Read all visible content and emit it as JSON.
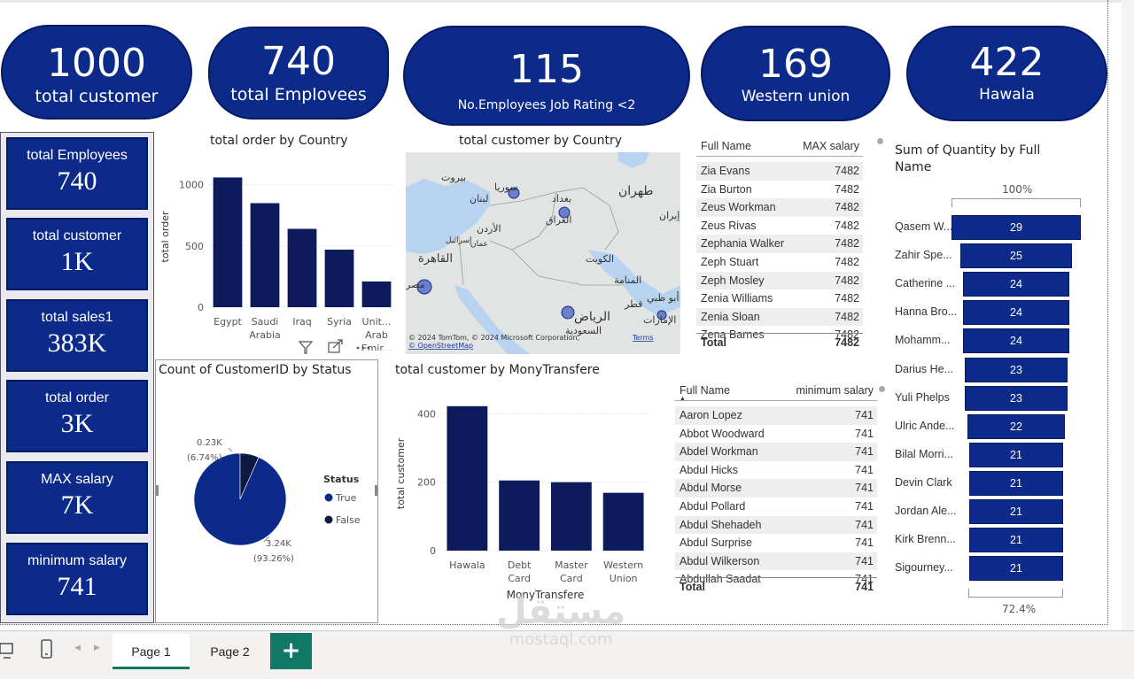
{
  "kpis": [
    {
      "value": "1000",
      "label": "total customer"
    },
    {
      "value": "740",
      "label": "total Emplovees"
    },
    {
      "value": "115",
      "label": "No.Employees Job Rating <2"
    },
    {
      "value": "169",
      "label": "Western union"
    },
    {
      "value": "422",
      "label": "Hawala"
    }
  ],
  "cards": [
    {
      "label": "total Employees",
      "value": "740"
    },
    {
      "label": "total customer",
      "value": "1K"
    },
    {
      "label": "total sales1",
      "value": "383K"
    },
    {
      "label": "total order",
      "value": "3K"
    },
    {
      "label": "MAX salary",
      "value": "7K"
    },
    {
      "label": "minimum salary",
      "value": "741"
    }
  ],
  "map": {
    "title": "total customer by Country",
    "credit": "© 2024 TomTom, © 2024 Microsoft Corporation,",
    "credit2": "© OpenStreetMap",
    "terms": "Terms",
    "labels": [
      {
        "text": "سوريا"
      },
      {
        "text": "بيروت"
      },
      {
        "text": "لبنان"
      },
      {
        "text": "بغداد"
      },
      {
        "text": "العراق"
      },
      {
        "text": "الأردن"
      },
      {
        "text": "طهران"
      },
      {
        "text": "إيران"
      },
      {
        "text": "القاهرة"
      },
      {
        "text": "الكويت"
      },
      {
        "text": "المنامة"
      },
      {
        "text": "مصر"
      },
      {
        "text": "الرياض"
      },
      {
        "text": "السعودية"
      },
      {
        "text": "قطر"
      },
      {
        "text": "أبو ظبي"
      },
      {
        "text": "الإمارات"
      },
      {
        "text": "إسرائيل"
      },
      {
        "text": "عمان"
      }
    ]
  },
  "table_max": {
    "col1": "Full Name",
    "col2": "MAX salary",
    "rows": [
      {
        "name": "Zia Evans",
        "value": "7482"
      },
      {
        "name": "Zia Burton",
        "value": "7482"
      },
      {
        "name": "Zeus Workman",
        "value": "7482"
      },
      {
        "name": "Zeus Rivas",
        "value": "7482"
      },
      {
        "name": "Zephania Walker",
        "value": "7482"
      },
      {
        "name": "Zeph Stuart",
        "value": "7482"
      },
      {
        "name": "Zeph Mosley",
        "value": "7482"
      },
      {
        "name": "Zenia Williams",
        "value": "7482"
      },
      {
        "name": "Zenia Sloan",
        "value": "7482"
      },
      {
        "name": "Zena Barnes",
        "value": "7482"
      }
    ],
    "total_label": "Total",
    "total_value": "7482"
  },
  "table_min": {
    "col1": "Full Name",
    "col2": "minimum salary",
    "rows": [
      {
        "name": "Aaron Lopez",
        "value": "741"
      },
      {
        "name": "Abbot Woodward",
        "value": "741"
      },
      {
        "name": "Abdel Workman",
        "value": "741"
      },
      {
        "name": "Abdul Hicks",
        "value": "741"
      },
      {
        "name": "Abdul Morse",
        "value": "741"
      },
      {
        "name": "Abdul Pollard",
        "value": "741"
      },
      {
        "name": "Abdul Shehadeh",
        "value": "741"
      },
      {
        "name": "Abdul Surprise",
        "value": "741"
      },
      {
        "name": "Abdul Wilkerson",
        "value": "741"
      },
      {
        "name": "Abdullah Saadat",
        "value": "741"
      }
    ],
    "total_label": "Total",
    "total_value": "741"
  },
  "funnel": {
    "title_line1": "Sum of Quantity by Full",
    "title_line2": "Name",
    "top_pct": "100%",
    "bottom_pct": "72.4%"
  },
  "tabs": {
    "page1": "Page 1",
    "page2": "Page 2",
    "add": "+"
  },
  "watermark": {
    "logo": "مستقل",
    "site": "mostaql.com"
  },
  "chart_data": [
    {
      "type": "bar",
      "title": "total order by Country",
      "xlabel": "",
      "ylabel": "total order",
      "categories": [
        "Egypt",
        "Saudi Arabia",
        "Iraq",
        "Syria",
        "Unit... Arab Emir..."
      ],
      "category_lines": [
        [
          "Egypt"
        ],
        [
          "Saudi",
          "Arabia"
        ],
        [
          "Iraq"
        ],
        [
          "Syria"
        ],
        [
          "Unit...",
          "Arab",
          "Emir..."
        ]
      ],
      "values": [
        1060,
        850,
        640,
        470,
        210
      ],
      "ylim": [
        0,
        1150
      ],
      "yticks": [
        0,
        500,
        1000
      ]
    },
    {
      "type": "pie",
      "title": "Count of CustomerID by Status",
      "legend_title": "Status",
      "categories": [
        "True",
        "False"
      ],
      "values": [
        3.24,
        0.23
      ],
      "labels": [
        {
          "value": "3.24K",
          "pct": "(93.26%)"
        },
        {
          "value": "0.23K",
          "pct": "(6.74%)"
        }
      ],
      "colors": [
        "#0c2a8a",
        "#0d1a40"
      ]
    },
    {
      "type": "bar",
      "title": "total customer by MonyTransfere",
      "xlabel": "MonyTransfere",
      "ylabel": "total customer",
      "categories": [
        "Hawala",
        "Debt Card",
        "Master Card",
        "Western Union"
      ],
      "category_lines": [
        [
          "Hawala"
        ],
        [
          "Debt",
          "Card"
        ],
        [
          "Master",
          "Card"
        ],
        [
          "Western",
          "Union"
        ]
      ],
      "values": [
        422,
        205,
        200,
        169
      ],
      "ylim": [
        0,
        450
      ],
      "yticks": [
        0,
        200,
        400
      ]
    },
    {
      "type": "funnel",
      "title": "Sum of Quantity by Full Name",
      "categories": [
        "Qasem W...",
        "Zahir Spe...",
        "Catherine ...",
        "Hanna Bro...",
        "Mohamm...",
        "Darius He...",
        "Yuli Phelps",
        "Ulric Ande...",
        "Bilal Morri...",
        "Devin Clark",
        "Jordan Ale...",
        "Kirk Brenn...",
        "Sigourney..."
      ],
      "values": [
        29,
        25,
        24,
        24,
        24,
        23,
        23,
        22,
        21,
        21,
        21,
        21,
        21
      ]
    }
  ]
}
